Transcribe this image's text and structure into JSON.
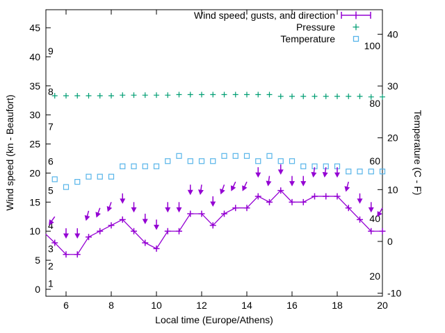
{
  "figure": {
    "background": "#ffffff",
    "border_color": "#000000"
  },
  "legend": {
    "items": [
      {
        "label": "Wind speed, gusts, and direction",
        "series": "wind",
        "marker": "errorbar-line-plus",
        "color": "#9400d3"
      },
      {
        "label": "Pressure",
        "series": "pressure",
        "marker": "plus",
        "color": "#009e73"
      },
      {
        "label": "Temperature",
        "series": "temperature",
        "marker": "open-square",
        "color": "#56b4e9"
      }
    ]
  },
  "axes": {
    "x": {
      "label": "Local time (Europe/Athens)",
      "tick_values": [
        6,
        8,
        10,
        12,
        14,
        16,
        18,
        20
      ],
      "range": [
        5.1,
        20
      ]
    },
    "y_left": {
      "label": "Wind speed (kn - Beaufort)",
      "tick_values": [
        0,
        5,
        10,
        15,
        20,
        25,
        30,
        35,
        40,
        45
      ],
      "range": [
        -1.2,
        48.1
      ],
      "beaufort_scale_labels": [
        {
          "beaufort": "1",
          "at_kn": 1
        },
        {
          "beaufort": "2",
          "at_kn": 4
        },
        {
          "beaufort": "3",
          "at_kn": 7
        },
        {
          "beaufort": "4",
          "at_kn": 11
        },
        {
          "beaufort": "5",
          "at_kn": 17
        },
        {
          "beaufort": "6",
          "at_kn": 22
        },
        {
          "beaufort": "7",
          "at_kn": 28
        },
        {
          "beaufort": "8",
          "at_kn": 34
        },
        {
          "beaufort": "9",
          "at_kn": 41
        }
      ]
    },
    "y_right": {
      "label": "Temperature (C - F)",
      "tick_values": [
        -10,
        0,
        10,
        20,
        30,
        40
      ],
      "range": [
        -10.6,
        44.8
      ],
      "fahrenheit_scale_labels": [
        {
          "fahrenheit": "20",
          "at_c": -6.67
        },
        {
          "fahrenheit": "40",
          "at_c": 4.44
        },
        {
          "fahrenheit": "60",
          "at_c": 15.56
        },
        {
          "fahrenheit": "80",
          "at_c": 26.67
        },
        {
          "fahrenheit": "100",
          "at_c": 37.78
        }
      ]
    }
  },
  "chart_data": {
    "type": "line",
    "title": "",
    "xlabel": "Local time (Europe/Athens)",
    "ylabel_left": "Wind speed (kn - Beaufort)",
    "ylabel_right": "Temperature (C - F)",
    "grid": false,
    "legend_position": "top-right-inside",
    "x_hours": [
      5.5,
      6,
      6.5,
      7,
      7.5,
      8,
      8.5,
      9,
      9.5,
      10,
      10.5,
      11,
      11.5,
      12,
      12.5,
      13,
      13.5,
      14,
      14.5,
      15,
      15.5,
      16,
      16.5,
      17,
      17.5,
      18,
      18.5,
      19,
      19.5,
      20
    ],
    "series": [
      {
        "name": "wind_speed_kn",
        "legend": "Wind speed, gusts, and direction",
        "color": "#9400d3",
        "marker": "plus",
        "line": true,
        "lead_in": {
          "t": 5.1,
          "v": 9.5,
          "note": "line enters clipped at left axis"
        },
        "values": [
          8,
          6,
          6,
          9,
          10,
          11,
          12,
          10,
          8,
          7,
          10,
          10,
          13,
          13,
          11,
          13,
          14,
          14,
          16,
          15,
          17,
          15,
          15,
          16,
          16,
          16,
          14,
          12,
          10,
          10
        ]
      },
      {
        "name": "wind_gust_kn",
        "legend": "gusts (down-arrows above wind line, arrow top = gust value, arrow angle = direction)",
        "color": "#9400d3",
        "marker": "arrow-down",
        "line": false,
        "values": [
          12.5,
          10.5,
          10.5,
          13.5,
          14,
          15,
          16.5,
          15,
          13,
          12,
          15,
          15,
          18,
          18,
          16,
          18,
          18.5,
          18.5,
          21,
          19.5,
          21.5,
          19.5,
          19.5,
          21,
          21,
          21,
          18.5,
          16.5,
          15,
          14
        ],
        "arrow_tilt_deg": [
          35,
          0,
          0,
          15,
          20,
          20,
          0,
          0,
          0,
          0,
          0,
          0,
          0,
          8,
          0,
          20,
          25,
          25,
          0,
          8,
          0,
          0,
          0,
          8,
          8,
          0,
          15,
          0,
          0,
          30
        ]
      },
      {
        "name": "pressure",
        "legend": "Pressure",
        "color": "#009e73",
        "marker": "plus",
        "line": false,
        "units": "plotted flat near 33 on the kn axis (no pressure scale shown)",
        "values_kn_axis": [
          33.3,
          33.3,
          33.3,
          33.3,
          33.3,
          33.3,
          33.4,
          33.4,
          33.4,
          33.4,
          33.4,
          33.5,
          33.5,
          33.5,
          33.5,
          33.5,
          33.5,
          33.5,
          33.5,
          33.5,
          33.2,
          33.2,
          33.2,
          33.2,
          33.2,
          33.2,
          33.2,
          33.2,
          33.1,
          33.1
        ]
      },
      {
        "name": "temperature_c",
        "legend": "Temperature",
        "color": "#56b4e9",
        "marker": "open-square",
        "line": false,
        "values": [
          12,
          10.5,
          11.5,
          12.5,
          12.5,
          12.5,
          14.5,
          14.5,
          14.5,
          14.5,
          15.5,
          16.5,
          15.5,
          15.5,
          15.5,
          16.5,
          16.5,
          16.5,
          15.5,
          16.5,
          15.5,
          15.5,
          14.5,
          14.5,
          14.5,
          14.5,
          13.5,
          13.5,
          13.5,
          13.5
        ]
      }
    ]
  }
}
